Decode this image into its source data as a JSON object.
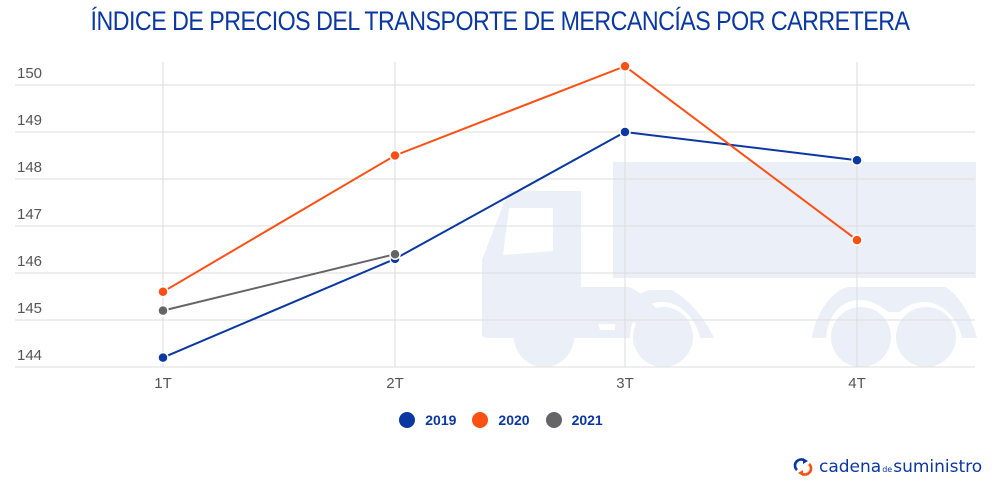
{
  "chart_data": {
    "type": "line",
    "title": "ÍNDICE DE PRECIOS DEL TRANSPORTE DE MERCANCÍAS POR CARRETERA",
    "xlabel": "",
    "ylabel": "",
    "categories": [
      "1T",
      "2T",
      "3T",
      "4T"
    ],
    "yticks": [
      144,
      145,
      146,
      147,
      148,
      149,
      150
    ],
    "ylim": [
      144,
      150.4
    ],
    "grid": true,
    "legend_position": "bottom",
    "series": [
      {
        "name": "2019",
        "color": "#0a37a0",
        "values": [
          144.2,
          146.3,
          149.0,
          148.4
        ]
      },
      {
        "name": "2020",
        "color": "#fa5014",
        "values": [
          145.6,
          148.5,
          150.4,
          146.7
        ]
      },
      {
        "name": "2021",
        "color": "#646469",
        "values": [
          145.2,
          146.4,
          null,
          null
        ]
      }
    ]
  },
  "background_icon": "truck-icon",
  "logo": {
    "icon": "refresh-arrows-icon",
    "part1": "cadena",
    "part2": "de",
    "part3": "suministro",
    "colors": {
      "blue": "#0a37a0",
      "orange": "#fa5014"
    }
  },
  "colors": {
    "title": "#0a37a0",
    "grid": "#dcdcdc",
    "truck": "#ebeff8"
  }
}
